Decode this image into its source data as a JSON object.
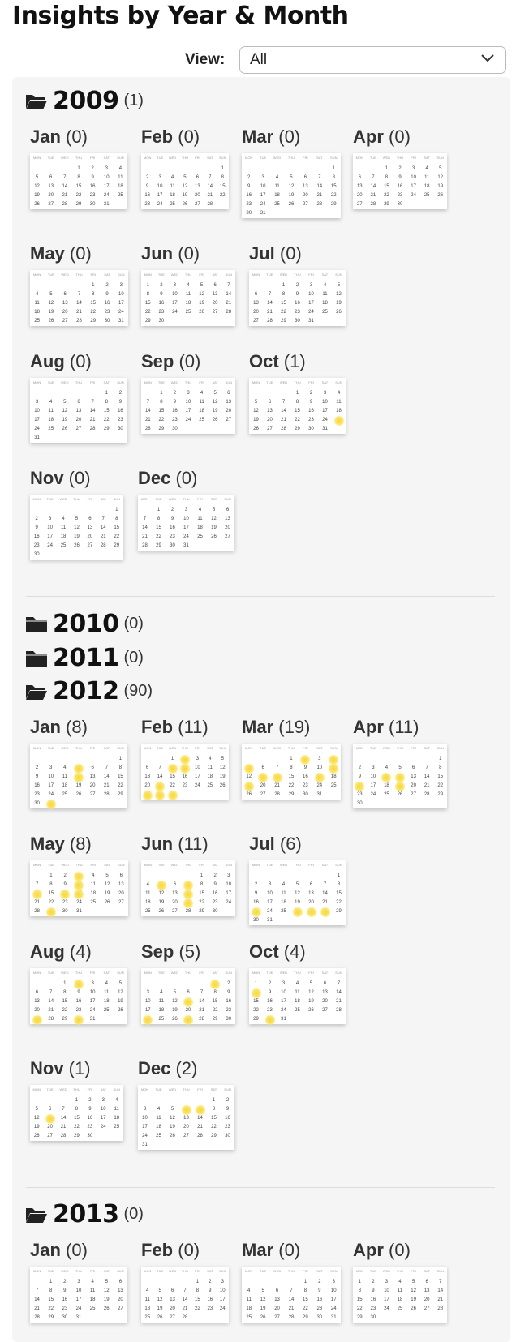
{
  "page": {
    "title": "Insights by Year & Month",
    "view_label": "View:",
    "view_value": "All",
    "weekdays": [
      "MON",
      "TUE",
      "WED",
      "THU",
      "FRI",
      "SAT",
      "SUN"
    ],
    "colors": {
      "highlight": "#f8d63a",
      "panel_bg": "#f5f5f5"
    },
    "icons": {
      "folder_open": "folder-open-icon",
      "folder_closed": "folder-icon",
      "dropdown": "chevron-down-icon"
    }
  },
  "years": [
    {
      "year": "2009",
      "count": "(1)",
      "expanded": true,
      "months": [
        {
          "name": "Jan",
          "count": "(0)",
          "year": 2009,
          "month": 1,
          "days": []
        },
        {
          "name": "Feb",
          "count": "(0)",
          "year": 2009,
          "month": 2,
          "days": []
        },
        {
          "name": "Mar",
          "count": "(0)",
          "year": 2009,
          "month": 3,
          "days": []
        },
        {
          "name": "Apr",
          "count": "(0)",
          "year": 2009,
          "month": 4,
          "days": []
        },
        {
          "name": "May",
          "count": "(0)",
          "year": 2009,
          "month": 5,
          "days": []
        },
        {
          "name": "Jun",
          "count": "(0)",
          "year": 2009,
          "month": 6,
          "days": []
        },
        {
          "name": "Jul",
          "count": "(0)",
          "year": 2009,
          "month": 7,
          "days": []
        },
        {
          "name": "Aug",
          "count": "(0)",
          "year": 2009,
          "month": 8,
          "days": []
        },
        {
          "name": "Sep",
          "count": "(0)",
          "year": 2009,
          "month": 9,
          "days": []
        },
        {
          "name": "Oct",
          "count": "(1)",
          "year": 2009,
          "month": 10,
          "days": [
            25
          ]
        },
        {
          "name": "Nov",
          "count": "(0)",
          "year": 2009,
          "month": 11,
          "days": []
        },
        {
          "name": "Dec",
          "count": "(0)",
          "year": 2009,
          "month": 12,
          "days": []
        }
      ]
    },
    {
      "year": "2010",
      "count": "(0)",
      "expanded": false,
      "months": []
    },
    {
      "year": "2011",
      "count": "(0)",
      "expanded": false,
      "months": []
    },
    {
      "year": "2012",
      "count": "(90)",
      "expanded": true,
      "months": [
        {
          "name": "Jan",
          "count": "(8)",
          "year": 2012,
          "month": 1,
          "days": [
            5,
            12,
            31
          ]
        },
        {
          "name": "Feb",
          "count": "(11)",
          "year": 2012,
          "month": 2,
          "days": [
            2,
            8,
            9,
            21,
            27,
            28,
            29
          ]
        },
        {
          "name": "Mar",
          "count": "(19)",
          "year": 2012,
          "month": 3,
          "days": [
            2,
            4,
            5,
            11,
            13,
            14,
            17,
            19
          ]
        },
        {
          "name": "Apr",
          "count": "(11)",
          "year": 2012,
          "month": 4,
          "days": [
            11,
            12,
            16,
            19
          ]
        },
        {
          "name": "May",
          "count": "(8)",
          "year": 2012,
          "month": 5,
          "days": [
            3,
            10,
            14,
            16,
            17,
            29
          ]
        },
        {
          "name": "Jun",
          "count": "(11)",
          "year": 2012,
          "month": 6,
          "days": [
            5,
            7,
            14,
            21
          ]
        },
        {
          "name": "Jul",
          "count": "(6)",
          "year": 2012,
          "month": 7,
          "days": [
            23,
            26,
            27,
            28
          ]
        },
        {
          "name": "Aug",
          "count": "(4)",
          "year": 2012,
          "month": 8,
          "days": [
            2,
            27,
            30
          ]
        },
        {
          "name": "Sep",
          "count": "(5)",
          "year": 2012,
          "month": 9,
          "days": [
            1,
            13,
            24,
            27
          ]
        },
        {
          "name": "Oct",
          "count": "(4)",
          "year": 2012,
          "month": 10,
          "days": [
            8,
            30
          ]
        },
        {
          "name": "Nov",
          "count": "(1)",
          "year": 2012,
          "month": 11,
          "days": [
            13
          ]
        },
        {
          "name": "Dec",
          "count": "(2)",
          "year": 2012,
          "month": 12,
          "days": [
            6,
            7
          ]
        }
      ]
    },
    {
      "year": "2013",
      "count": "(0)",
      "expanded": true,
      "months": [
        {
          "name": "Jan",
          "count": "(0)",
          "year": 2013,
          "month": 1,
          "days": []
        },
        {
          "name": "Feb",
          "count": "(0)",
          "year": 2013,
          "month": 2,
          "days": []
        },
        {
          "name": "Mar",
          "count": "(0)",
          "year": 2013,
          "month": 3,
          "days": []
        },
        {
          "name": "Apr",
          "count": "(0)",
          "year": 2013,
          "month": 4,
          "days": []
        }
      ]
    }
  ]
}
